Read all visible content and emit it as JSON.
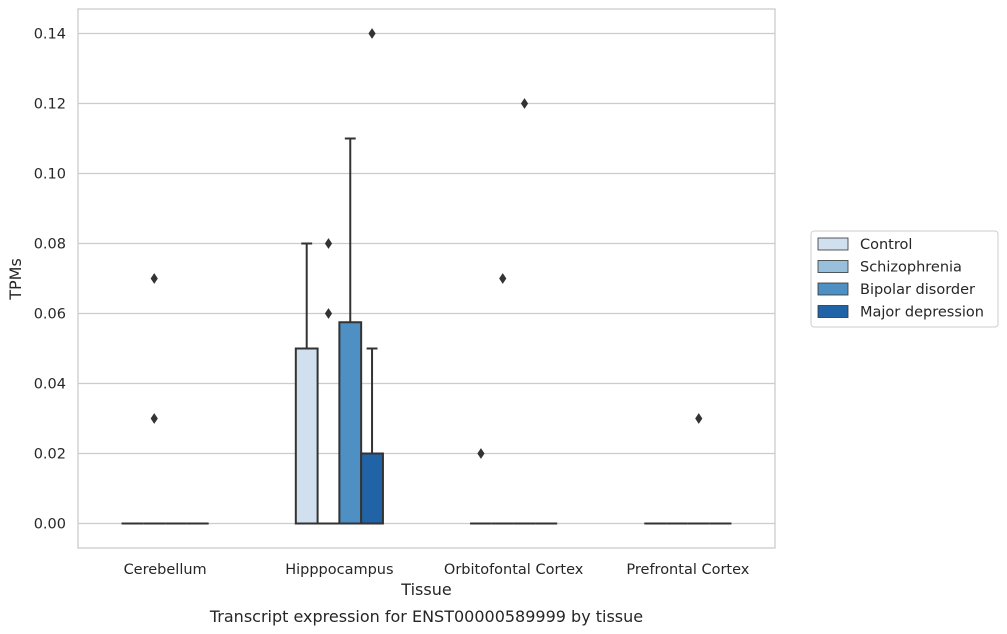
{
  "chart_data": {
    "type": "box",
    "xlabel": "Tissue",
    "ylabel": "TPMs",
    "caption": "Transcript expression for ENST00000589999 by tissue",
    "ylim": [
      -0.007,
      0.147
    ],
    "yticks": [
      "0.00",
      "0.02",
      "0.04",
      "0.06",
      "0.08",
      "0.10",
      "0.12",
      "0.14"
    ],
    "grid": "horizontal",
    "legend_position": "right",
    "categories": [
      "Cerebellum",
      "Hipppocampus",
      "Orbitofontal Cortex",
      "Prefrontal Cortex"
    ],
    "series": [
      {
        "name": "Control",
        "color": "#d0e0ef"
      },
      {
        "name": "Schizophrenia",
        "color": "#98c0dd"
      },
      {
        "name": "Bipolar disorder",
        "color": "#4f90c4"
      },
      {
        "name": "Major depression",
        "color": "#2163a7"
      }
    ],
    "boxes": [
      {
        "category": 0,
        "series": 0,
        "q1": 0,
        "median": 0,
        "q3": 0,
        "whisker_low": 0,
        "whisker_high": 0,
        "outliers": []
      },
      {
        "category": 0,
        "series": 1,
        "q1": 0,
        "median": 0,
        "q3": 0,
        "whisker_low": 0,
        "whisker_high": 0,
        "outliers": [
          0.07,
          0.03
        ]
      },
      {
        "category": 0,
        "series": 2,
        "q1": 0,
        "median": 0,
        "q3": 0,
        "whisker_low": 0,
        "whisker_high": 0,
        "outliers": []
      },
      {
        "category": 0,
        "series": 3,
        "q1": 0,
        "median": 0,
        "q3": 0,
        "whisker_low": 0,
        "whisker_high": 0,
        "outliers": []
      },
      {
        "category": 1,
        "series": 0,
        "q1": 0,
        "median": 0,
        "q3": 0.05,
        "whisker_low": 0,
        "whisker_high": 0.08,
        "outliers": []
      },
      {
        "category": 1,
        "series": 1,
        "q1": 0,
        "median": 0,
        "q3": 0,
        "whisker_low": 0,
        "whisker_high": 0,
        "outliers": [
          0.08,
          0.06
        ]
      },
      {
        "category": 1,
        "series": 2,
        "q1": 0,
        "median": 0,
        "q3": 0.0575,
        "whisker_low": 0,
        "whisker_high": 0.11,
        "outliers": []
      },
      {
        "category": 1,
        "series": 3,
        "q1": 0,
        "median": 0,
        "q3": 0.02,
        "whisker_low": 0,
        "whisker_high": 0.05,
        "outliers": [
          0.14
        ]
      },
      {
        "category": 2,
        "series": 0,
        "q1": 0,
        "median": 0,
        "q3": 0,
        "whisker_low": 0,
        "whisker_high": 0,
        "outliers": [
          0.02
        ]
      },
      {
        "category": 2,
        "series": 1,
        "q1": 0,
        "median": 0,
        "q3": 0,
        "whisker_low": 0,
        "whisker_high": 0,
        "outliers": [
          0.07
        ]
      },
      {
        "category": 2,
        "series": 2,
        "q1": 0,
        "median": 0,
        "q3": 0,
        "whisker_low": 0,
        "whisker_high": 0,
        "outliers": [
          0.12
        ]
      },
      {
        "category": 2,
        "series": 3,
        "q1": 0,
        "median": 0,
        "q3": 0,
        "whisker_low": 0,
        "whisker_high": 0,
        "outliers": []
      },
      {
        "category": 3,
        "series": 0,
        "q1": 0,
        "median": 0,
        "q3": 0,
        "whisker_low": 0,
        "whisker_high": 0,
        "outliers": []
      },
      {
        "category": 3,
        "series": 1,
        "q1": 0,
        "median": 0,
        "q3": 0,
        "whisker_low": 0,
        "whisker_high": 0,
        "outliers": []
      },
      {
        "category": 3,
        "series": 2,
        "q1": 0,
        "median": 0,
        "q3": 0,
        "whisker_low": 0,
        "whisker_high": 0,
        "outliers": [
          0.03
        ]
      },
      {
        "category": 3,
        "series": 3,
        "q1": 0,
        "median": 0,
        "q3": 0,
        "whisker_low": 0,
        "whisker_high": 0,
        "outliers": []
      }
    ],
    "colors": {
      "grid": "#cccccc",
      "axes_edge": "#cccccc",
      "box_edge": "#333333",
      "outlier": "#333333"
    }
  }
}
